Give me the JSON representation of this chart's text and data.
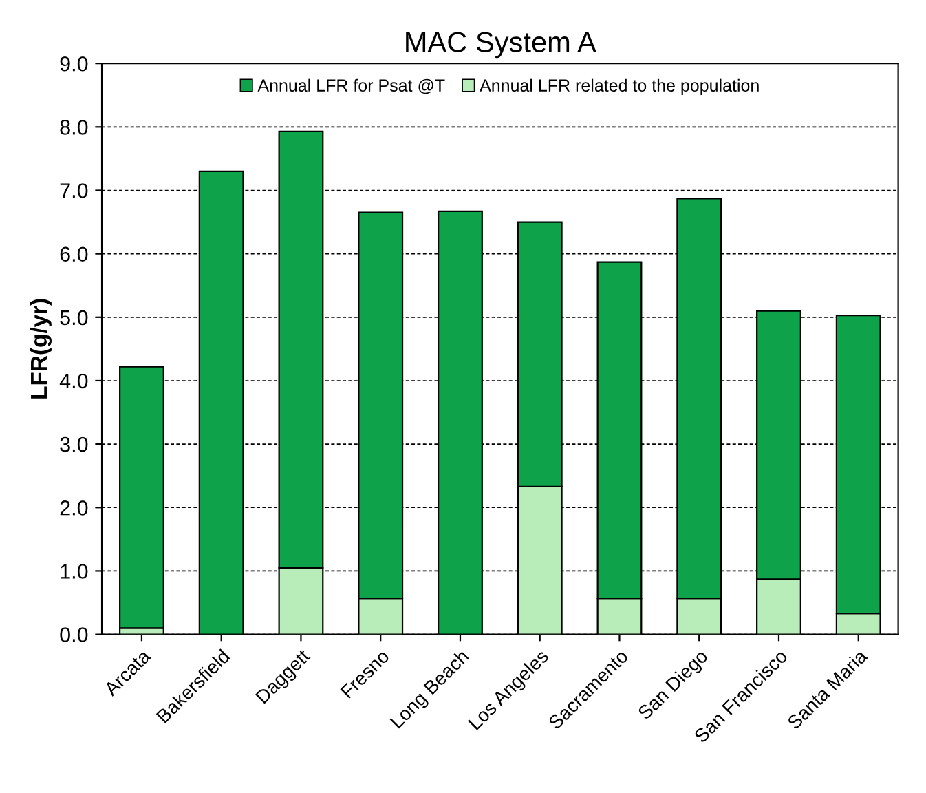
{
  "chart_data": {
    "type": "bar",
    "title": "MAC System A",
    "ylabel": "LFR(g/yr)",
    "categories": [
      "Arcata",
      "Bakersfield",
      "Daggett",
      "Fresno",
      "Long Beach",
      "Los Angeles",
      "Sacramento",
      "San Diego",
      "San Francisco",
      "Santa Maria"
    ],
    "series": [
      {
        "name": "Annual LFR related to the population",
        "color": "#b8ecb8",
        "values": [
          0.1,
          null,
          1.05,
          0.57,
          null,
          2.33,
          0.57,
          0.57,
          0.87,
          0.33
        ]
      },
      {
        "name": "Annual LFR for Psat @T",
        "color": "#0ea34a",
        "values": [
          4.12,
          7.3,
          6.88,
          6.08,
          6.67,
          4.17,
          5.3,
          6.3,
          4.23,
          4.7
        ]
      }
    ],
    "ylim": [
      0,
      9
    ],
    "yticks": [
      {
        "value": 0,
        "label": "0.0"
      },
      {
        "value": 1,
        "label": "1.0"
      },
      {
        "value": 2,
        "label": "2.0"
      },
      {
        "value": 3,
        "label": "3.0"
      },
      {
        "value": 4,
        "label": "4.0"
      },
      {
        "value": 5,
        "label": "5.0"
      },
      {
        "value": 6,
        "label": "6.0"
      },
      {
        "value": 7,
        "label": "7.0"
      },
      {
        "value": 8,
        "label": "8.0"
      },
      {
        "value": 9,
        "label": "9.0"
      }
    ],
    "stacked": true,
    "grid": "y",
    "legend": "top"
  }
}
